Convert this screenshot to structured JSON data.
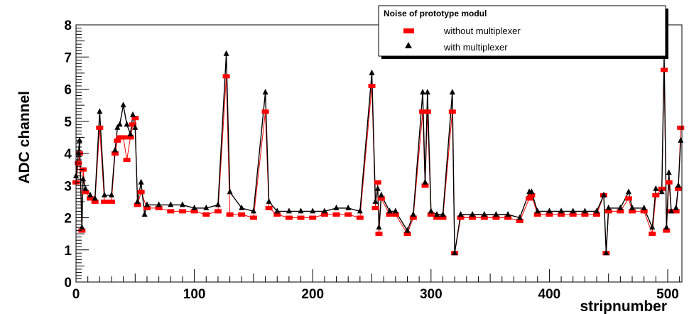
{
  "chart_data": {
    "type": "line",
    "title": "",
    "xlabel": "stripnumber",
    "ylabel": "ADC channel",
    "xlim": [
      0,
      512
    ],
    "ylim": [
      0,
      8
    ],
    "x_ticks": [
      "0",
      "100",
      "200",
      "300",
      "400",
      "500"
    ],
    "y_ticks": [
      "0",
      "1",
      "2",
      "3",
      "4",
      "5",
      "6",
      "7",
      "8"
    ],
    "grid": false,
    "legend": {
      "title": "Noise of prototype modul",
      "position": "top-right",
      "entries": [
        "without multiplexer",
        "with multiplexer"
      ]
    },
    "series": [
      {
        "name": "without multiplexer",
        "marker": "square",
        "color": "#ff0000",
        "points": [
          [
            0,
            3.1
          ],
          [
            2,
            3.7
          ],
          [
            3,
            4.0
          ],
          [
            5,
            1.6
          ],
          [
            6,
            3.5
          ],
          [
            8,
            2.8
          ],
          [
            12,
            2.6
          ],
          [
            16,
            2.5
          ],
          [
            20,
            4.8
          ],
          [
            24,
            2.5
          ],
          [
            30,
            2.5
          ],
          [
            33,
            4.0
          ],
          [
            35,
            4.4
          ],
          [
            37,
            4.5
          ],
          [
            40,
            4.5
          ],
          [
            43,
            3.8
          ],
          [
            46,
            4.5
          ],
          [
            48,
            4.9
          ],
          [
            50,
            5.1
          ],
          [
            52,
            2.4
          ],
          [
            55,
            2.8
          ],
          [
            60,
            2.3
          ],
          [
            70,
            2.3
          ],
          [
            80,
            2.2
          ],
          [
            90,
            2.2
          ],
          [
            100,
            2.2
          ],
          [
            110,
            2.1
          ],
          [
            120,
            2.2
          ],
          [
            127,
            6.4
          ],
          [
            130,
            2.1
          ],
          [
            140,
            2.1
          ],
          [
            150,
            2.0
          ],
          [
            160,
            5.3
          ],
          [
            163,
            2.3
          ],
          [
            170,
            2.1
          ],
          [
            180,
            2.0
          ],
          [
            190,
            2.0
          ],
          [
            200,
            2.0
          ],
          [
            210,
            2.1
          ],
          [
            220,
            2.1
          ],
          [
            230,
            2.1
          ],
          [
            240,
            2.0
          ],
          [
            250,
            6.1
          ],
          [
            253,
            2.3
          ],
          [
            255,
            3.1
          ],
          [
            256,
            1.5
          ],
          [
            258,
            2.6
          ],
          [
            265,
            2.1
          ],
          [
            270,
            2.1
          ],
          [
            280,
            1.5
          ],
          [
            285,
            2.0
          ],
          [
            293,
            5.3
          ],
          [
            295,
            3.0
          ],
          [
            297,
            5.3
          ],
          [
            300,
            2.1
          ],
          [
            305,
            2.0
          ],
          [
            310,
            2.0
          ],
          [
            318,
            5.3
          ],
          [
            320,
            0.9
          ],
          [
            325,
            2.0
          ],
          [
            335,
            2.0
          ],
          [
            345,
            2.0
          ],
          [
            355,
            2.0
          ],
          [
            365,
            2.0
          ],
          [
            375,
            1.9
          ],
          [
            383,
            2.6
          ],
          [
            385,
            2.7
          ],
          [
            390,
            2.1
          ],
          [
            400,
            2.1
          ],
          [
            410,
            2.1
          ],
          [
            420,
            2.1
          ],
          [
            430,
            2.1
          ],
          [
            440,
            2.1
          ],
          [
            446,
            2.7
          ],
          [
            448,
            0.9
          ],
          [
            450,
            2.2
          ],
          [
            460,
            2.2
          ],
          [
            467,
            2.6
          ],
          [
            470,
            2.2
          ],
          [
            480,
            2.2
          ],
          [
            487,
            1.5
          ],
          [
            490,
            2.7
          ],
          [
            495,
            2.9
          ],
          [
            497,
            6.6
          ],
          [
            499,
            1.6
          ],
          [
            501,
            3.1
          ],
          [
            503,
            2.2
          ],
          [
            507,
            2.2
          ],
          [
            509,
            2.9
          ],
          [
            511,
            4.8
          ]
        ]
      },
      {
        "name": "with multiplexer",
        "marker": "triangle",
        "color": "#000000",
        "points": [
          [
            0,
            3.3
          ],
          [
            2,
            4.0
          ],
          [
            3,
            4.4
          ],
          [
            5,
            1.7
          ],
          [
            6,
            3.2
          ],
          [
            8,
            2.9
          ],
          [
            12,
            2.7
          ],
          [
            16,
            2.6
          ],
          [
            20,
            5.3
          ],
          [
            24,
            2.7
          ],
          [
            30,
            2.7
          ],
          [
            33,
            4.1
          ],
          [
            35,
            4.8
          ],
          [
            37,
            4.9
          ],
          [
            40,
            5.5
          ],
          [
            43,
            4.9
          ],
          [
            46,
            4.6
          ],
          [
            48,
            5.2
          ],
          [
            50,
            4.8
          ],
          [
            52,
            2.5
          ],
          [
            55,
            3.1
          ],
          [
            58,
            2.1
          ],
          [
            60,
            2.4
          ],
          [
            70,
            2.4
          ],
          [
            80,
            2.4
          ],
          [
            90,
            2.4
          ],
          [
            100,
            2.3
          ],
          [
            110,
            2.3
          ],
          [
            120,
            2.4
          ],
          [
            127,
            7.1
          ],
          [
            130,
            2.8
          ],
          [
            140,
            2.3
          ],
          [
            150,
            2.2
          ],
          [
            160,
            5.9
          ],
          [
            163,
            2.5
          ],
          [
            170,
            2.2
          ],
          [
            180,
            2.2
          ],
          [
            190,
            2.2
          ],
          [
            200,
            2.2
          ],
          [
            210,
            2.2
          ],
          [
            220,
            2.3
          ],
          [
            230,
            2.3
          ],
          [
            240,
            2.2
          ],
          [
            250,
            6.5
          ],
          [
            253,
            2.5
          ],
          [
            255,
            2.9
          ],
          [
            256,
            1.7
          ],
          [
            258,
            2.7
          ],
          [
            265,
            2.2
          ],
          [
            270,
            2.2
          ],
          [
            280,
            1.6
          ],
          [
            285,
            2.1
          ],
          [
            293,
            5.9
          ],
          [
            295,
            3.1
          ],
          [
            297,
            5.9
          ],
          [
            300,
            2.2
          ],
          [
            305,
            2.1
          ],
          [
            310,
            2.1
          ],
          [
            318,
            5.9
          ],
          [
            320,
            0.9
          ],
          [
            325,
            2.1
          ],
          [
            335,
            2.1
          ],
          [
            345,
            2.1
          ],
          [
            355,
            2.1
          ],
          [
            365,
            2.1
          ],
          [
            375,
            2.0
          ],
          [
            383,
            2.8
          ],
          [
            385,
            2.8
          ],
          [
            390,
            2.2
          ],
          [
            400,
            2.2
          ],
          [
            410,
            2.2
          ],
          [
            420,
            2.2
          ],
          [
            430,
            2.2
          ],
          [
            440,
            2.2
          ],
          [
            446,
            2.7
          ],
          [
            448,
            0.9
          ],
          [
            450,
            2.3
          ],
          [
            460,
            2.3
          ],
          [
            467,
            2.8
          ],
          [
            470,
            2.3
          ],
          [
            480,
            2.3
          ],
          [
            487,
            1.7
          ],
          [
            490,
            2.9
          ],
          [
            495,
            2.8
          ],
          [
            497,
            7.1
          ],
          [
            499,
            1.7
          ],
          [
            501,
            3.4
          ],
          [
            503,
            2.2
          ],
          [
            507,
            2.3
          ],
          [
            509,
            3.0
          ],
          [
            511,
            4.4
          ]
        ]
      }
    ]
  }
}
